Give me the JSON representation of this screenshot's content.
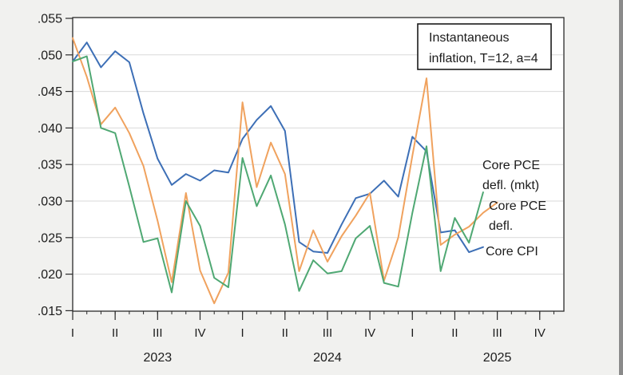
{
  "legend": {
    "line1": "Instantaneous",
    "line2": "inflation, T=12, a=4"
  },
  "series_labels": {
    "pce_mkt_line1": "Core PCE",
    "pce_mkt_line2": "defl. (mkt)",
    "pce_line1": "Core PCE",
    "pce_line2": "defl.",
    "cpi_line1": "Core CPI"
  },
  "label_colors": {
    "pce_mkt": "#2f9e48",
    "pce": "#e0881e",
    "cpi": "#3468ac"
  },
  "chart_data": {
    "type": "line",
    "title": "Instantaneous inflation, T=12, a=4",
    "x_unit": "monthly observations starting Jan 2023",
    "ylim": [
      0.015,
      0.055
    ],
    "grid": "horizontal-only",
    "y_tick_labels": [
      ".055",
      ".050",
      ".045",
      ".040",
      ".035",
      ".030",
      ".025",
      ".020",
      ".015"
    ],
    "y_tick_values": [
      0.055,
      0.05,
      0.045,
      0.04,
      0.035,
      0.03,
      0.025,
      0.02,
      0.015
    ],
    "gridline_values": [
      0.05,
      0.045,
      0.04,
      0.035,
      0.03,
      0.025,
      0.02
    ],
    "quarter_labels": [
      "I",
      "II",
      "III",
      "IV",
      "I",
      "II",
      "III",
      "IV",
      "I",
      "II",
      "III",
      "IV"
    ],
    "year_labels": [
      "2023",
      "2024",
      "2025"
    ],
    "series": [
      {
        "name": "Core CPI",
        "color": "#3d6fb6",
        "values": [
          0.0491,
          0.0517,
          0.0483,
          0.0505,
          0.049,
          0.042,
          0.0358,
          0.0322,
          0.0337,
          0.0328,
          0.0342,
          0.0339,
          0.0385,
          0.0411,
          0.043,
          0.0396,
          0.0244,
          0.0231,
          0.0229,
          0.0268,
          0.0304,
          0.031,
          0.0328,
          0.0306,
          0.0388,
          0.0368,
          0.0257,
          0.026,
          0.023,
          0.0237
        ]
      },
      {
        "name": "Core PCE defl.",
        "color": "#f0a25e",
        "values": [
          0.0523,
          0.047,
          0.0405,
          0.0428,
          0.0393,
          0.0348,
          0.0273,
          0.0189,
          0.0311,
          0.0205,
          0.016,
          0.0202,
          0.0435,
          0.0319,
          0.038,
          0.0337,
          0.0204,
          0.026,
          0.0217,
          0.0252,
          0.028,
          0.0311,
          0.0191,
          0.025,
          0.0362,
          0.0468,
          0.024,
          0.0254,
          0.0265,
          0.0284,
          0.0298
        ]
      },
      {
        "name": "Core PCE defl. (mkt)",
        "color": "#4fa873",
        "values": [
          0.0491,
          0.0498,
          0.04,
          0.0393,
          0.032,
          0.0244,
          0.0249,
          0.0175,
          0.03,
          0.0266,
          0.0195,
          0.0182,
          0.0359,
          0.0293,
          0.0335,
          0.0268,
          0.0177,
          0.0219,
          0.0201,
          0.0204,
          0.0249,
          0.0266,
          0.0188,
          0.0183,
          0.0284,
          0.0375,
          0.0204,
          0.0277,
          0.0243,
          0.0312
        ]
      }
    ]
  }
}
